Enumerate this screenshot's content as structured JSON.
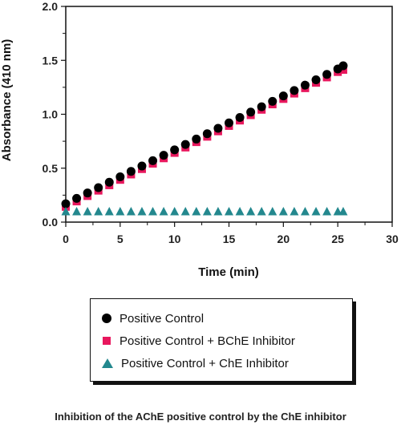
{
  "chart_data": {
    "type": "scatter",
    "xlabel": "Time (min)",
    "ylabel": "Absorbance (410 nm)",
    "xlim": [
      0,
      30
    ],
    "ylim": [
      0,
      2.0
    ],
    "xticks": [
      "0",
      "5",
      "10",
      "15",
      "20",
      "25",
      "30"
    ],
    "yticks": [
      "0.0",
      "0.5",
      "1.0",
      "1.5",
      "2.0"
    ],
    "grid": false,
    "legend_position": "below",
    "series": [
      {
        "name": "Positive Control",
        "marker": "circle",
        "color": "#000000",
        "x": [
          0,
          1,
          2,
          3,
          4,
          5,
          6,
          7,
          8,
          9,
          10,
          11,
          12,
          13,
          14,
          15,
          16,
          17,
          18,
          19,
          20,
          21,
          22,
          23,
          24,
          25,
          25.5
        ],
        "y": [
          0.17,
          0.22,
          0.27,
          0.32,
          0.37,
          0.42,
          0.47,
          0.52,
          0.57,
          0.62,
          0.67,
          0.72,
          0.77,
          0.82,
          0.87,
          0.92,
          0.97,
          1.02,
          1.07,
          1.12,
          1.17,
          1.22,
          1.27,
          1.32,
          1.37,
          1.42,
          1.45
        ]
      },
      {
        "name": "Positive Control + BChE Inhibitor",
        "marker": "square",
        "color": "#e8175d",
        "x": [
          0,
          1,
          2,
          3,
          4,
          5,
          6,
          7,
          8,
          9,
          10,
          11,
          12,
          13,
          14,
          15,
          16,
          17,
          18,
          19,
          20,
          21,
          22,
          23,
          24,
          25,
          25.5
        ],
        "y": [
          0.15,
          0.2,
          0.25,
          0.3,
          0.35,
          0.4,
          0.45,
          0.5,
          0.55,
          0.6,
          0.65,
          0.7,
          0.75,
          0.8,
          0.85,
          0.9,
          0.95,
          1.0,
          1.05,
          1.1,
          1.15,
          1.2,
          1.25,
          1.3,
          1.35,
          1.4,
          1.42
        ]
      },
      {
        "name": "Positive Control + ChE Inhibitor",
        "marker": "triangle",
        "color": "#23888e",
        "x": [
          0,
          1,
          2,
          3,
          4,
          5,
          6,
          7,
          8,
          9,
          10,
          11,
          12,
          13,
          14,
          15,
          16,
          17,
          18,
          19,
          20,
          21,
          22,
          23,
          24,
          25,
          25.5
        ],
        "y": [
          0.1,
          0.1,
          0.1,
          0.1,
          0.1,
          0.1,
          0.1,
          0.1,
          0.1,
          0.1,
          0.1,
          0.1,
          0.1,
          0.1,
          0.1,
          0.1,
          0.1,
          0.1,
          0.1,
          0.1,
          0.1,
          0.1,
          0.1,
          0.1,
          0.1,
          0.1,
          0.1
        ]
      }
    ]
  },
  "caption": "Inhibition of the AChE positive control by the ChE inhibitor"
}
